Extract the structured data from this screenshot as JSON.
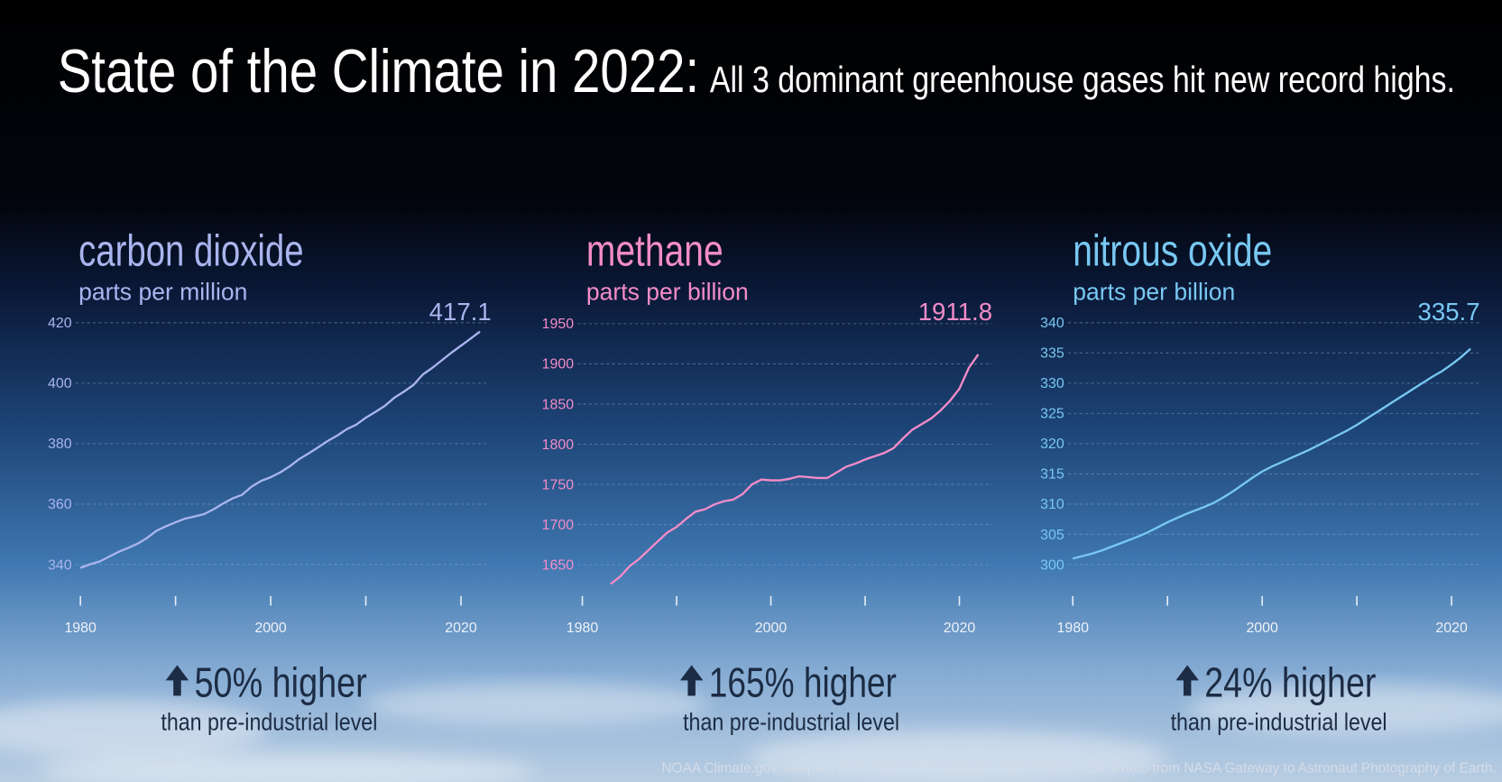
{
  "title": "State of the Climate in 2022:",
  "subtitle": "All 3 dominant greenhouse gases hit new record highs.",
  "source": {
    "before": "NOAA Climate.gov, adapted from ",
    "italic": "State of the Climate 2022",
    "after": ", Figure 2.56. Photo from NASA Gateway to Astronaut Photography of Earth."
  },
  "chart_data": [
    {
      "type": "line",
      "title": "carbon dioxide",
      "subtitle": "parts per million",
      "color": "#aab4ee",
      "x": [
        1980,
        1981,
        1982,
        1983,
        1984,
        1985,
        1986,
        1987,
        1988,
        1989,
        1990,
        1991,
        1992,
        1993,
        1994,
        1995,
        1996,
        1997,
        1998,
        1999,
        2000,
        2001,
        2002,
        2003,
        2004,
        2005,
        2006,
        2007,
        2008,
        2009,
        2010,
        2011,
        2012,
        2013,
        2014,
        2015,
        2016,
        2017,
        2018,
        2019,
        2020,
        2021,
        2022
      ],
      "values": [
        338.9,
        340.1,
        341.0,
        342.6,
        344.2,
        345.5,
        346.9,
        348.8,
        351.2,
        352.7,
        354.0,
        355.2,
        355.9,
        356.7,
        358.3,
        360.2,
        361.9,
        363.1,
        365.8,
        367.7,
        368.9,
        370.5,
        372.5,
        374.9,
        376.8,
        378.8,
        380.9,
        382.7,
        384.8,
        386.3,
        388.6,
        390.5,
        392.5,
        395.2,
        397.2,
        399.4,
        402.9,
        405.1,
        407.6,
        410.1,
        412.4,
        414.7,
        417.1
      ],
      "xlim": [
        1979.5,
        2023
      ],
      "ylim": [
        328,
        425
      ],
      "xticks": [
        1980,
        2000,
        2020
      ],
      "xminorticks": [
        1990,
        2010
      ],
      "yticks": [
        340,
        360,
        380,
        400,
        420
      ],
      "grid": true,
      "change": "50% higher",
      "change_note": "than pre-industrial level"
    },
    {
      "type": "line",
      "title": "methane",
      "subtitle": "parts per billion",
      "color": "#f48cc8",
      "x": [
        1983,
        1984,
        1985,
        1986,
        1987,
        1988,
        1989,
        1990,
        1991,
        1992,
        1993,
        1994,
        1995,
        1996,
        1997,
        1998,
        1999,
        2000,
        2001,
        2002,
        2003,
        2004,
        2005,
        2006,
        2007,
        2008,
        2009,
        2010,
        2011,
        2012,
        2013,
        2014,
        2015,
        2016,
        2017,
        2018,
        2019,
        2020,
        2021,
        2022
      ],
      "values": [
        1626,
        1635,
        1648,
        1657,
        1668,
        1679,
        1690,
        1697,
        1707,
        1716,
        1719,
        1725,
        1729,
        1731,
        1738,
        1750,
        1756,
        1755,
        1755,
        1757,
        1760,
        1759,
        1758,
        1758,
        1765,
        1772,
        1776,
        1781,
        1785,
        1789,
        1795,
        1807,
        1818,
        1825,
        1832,
        1842,
        1854,
        1869,
        1895,
        1911.8
      ],
      "xlim": [
        1979.5,
        2023.5
      ],
      "ylim": [
        1605,
        1970
      ],
      "xticks": [
        1980,
        2000,
        2020
      ],
      "xminorticks": [
        1990,
        2010
      ],
      "yticks": [
        1650,
        1700,
        1750,
        1800,
        1850,
        1900,
        1950
      ],
      "grid": true,
      "change": "165% higher",
      "change_note": "than pre-industrial level"
    },
    {
      "type": "line",
      "title": "nitrous oxide",
      "subtitle": "parts per billion",
      "color": "#78c8f2",
      "x": [
        1980,
        1981,
        1982,
        1983,
        1984,
        1985,
        1986,
        1987,
        1988,
        1989,
        1990,
        1991,
        1992,
        1993,
        1994,
        1995,
        1996,
        1997,
        1998,
        1999,
        2000,
        2001,
        2002,
        2003,
        2004,
        2005,
        2006,
        2007,
        2008,
        2009,
        2010,
        2011,
        2012,
        2013,
        2014,
        2015,
        2016,
        2017,
        2018,
        2019,
        2020,
        2021,
        2022
      ],
      "values": [
        301.0,
        301.4,
        301.8,
        302.3,
        302.9,
        303.5,
        304.1,
        304.7,
        305.4,
        306.2,
        307.0,
        307.7,
        308.4,
        309.0,
        309.6,
        310.3,
        311.2,
        312.2,
        313.3,
        314.4,
        315.4,
        316.2,
        316.9,
        317.6,
        318.3,
        319.0,
        319.8,
        320.6,
        321.4,
        322.2,
        323.1,
        324.1,
        325.1,
        326.1,
        327.1,
        328.1,
        329.1,
        330.1,
        331.1,
        332.0,
        333.1,
        334.3,
        335.7
      ],
      "xlim": [
        1979.5,
        2023
      ],
      "ylim": [
        294,
        342.5
      ],
      "xticks": [
        1980,
        2000,
        2020
      ],
      "xminorticks": [
        1990,
        2010
      ],
      "yticks": [
        300,
        305,
        310,
        315,
        320,
        325,
        330,
        335,
        340
      ],
      "grid": true,
      "change": "24% higher",
      "change_note": "than pre-industrial level"
    }
  ]
}
